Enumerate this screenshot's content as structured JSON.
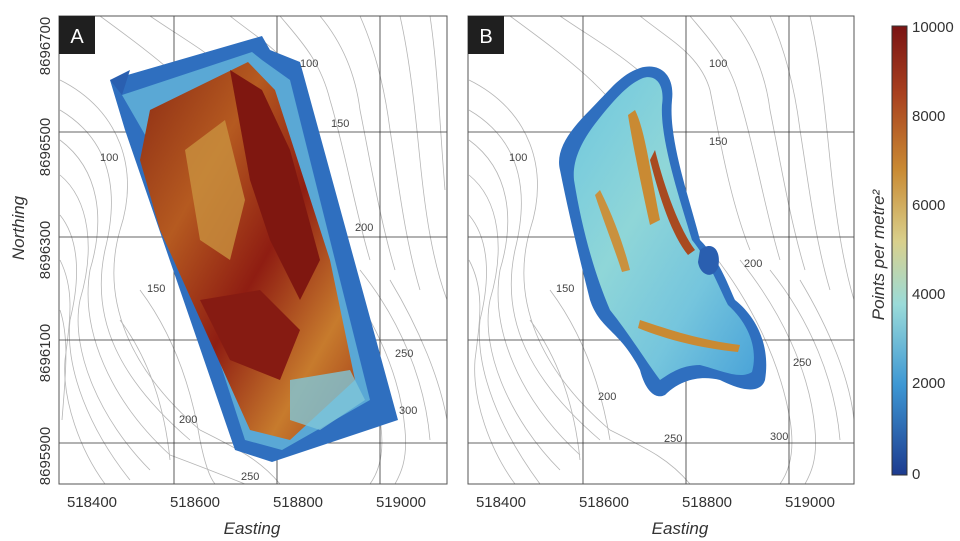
{
  "panels": [
    {
      "label": "A",
      "x_ticks": [
        "518400",
        "518600",
        "518800",
        "519000"
      ],
      "y_ticks": [
        "8696700",
        "8696500",
        "8696300",
        "8696100",
        "8695900"
      ],
      "contour_labels": [
        "100",
        "150",
        "100",
        "200",
        "150",
        "250",
        "200",
        "300",
        "250"
      ]
    },
    {
      "label": "B",
      "x_ticks": [
        "518400",
        "518600",
        "518800",
        "519000"
      ],
      "contour_labels": [
        "100",
        "150",
        "100",
        "200",
        "150",
        "250",
        "200",
        "250",
        "300"
      ]
    }
  ],
  "x_axis_title": "Easting",
  "y_axis_title": "Northing",
  "colorbar": {
    "title": "Points per metre²",
    "ticks": [
      "10000",
      "8000",
      "6000",
      "4000",
      "2000",
      "0"
    ],
    "colors": [
      "#8b1a1a",
      "#c0792a",
      "#d9c47a",
      "#8fd3d6",
      "#3a8fd0",
      "#1c3f94"
    ]
  }
}
